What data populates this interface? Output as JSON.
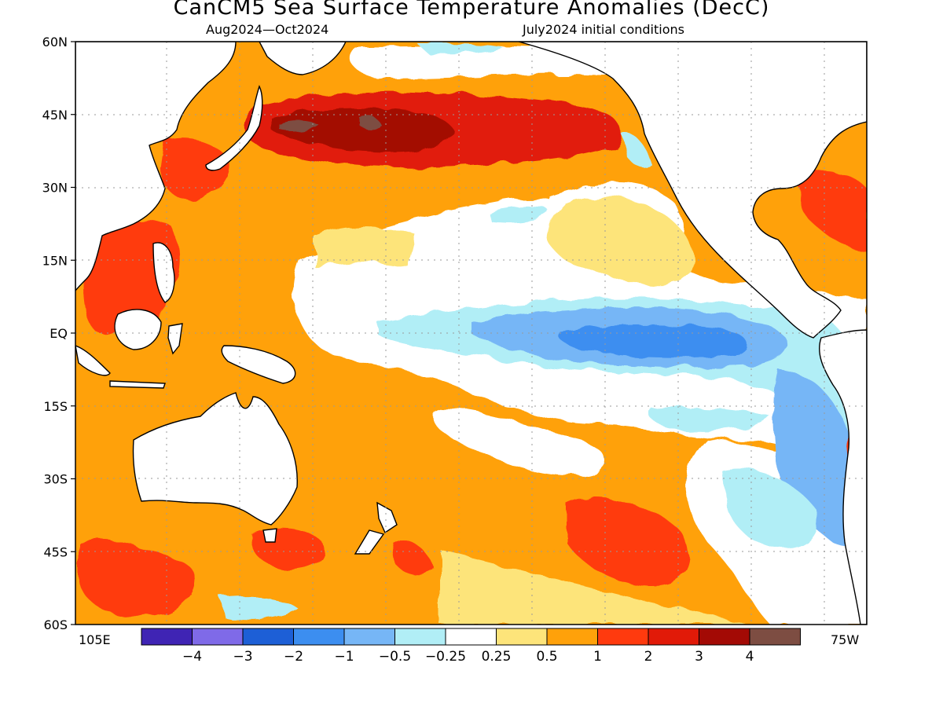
{
  "title": "CanCM5 Sea Surface Temperature Anomalies (DecC)",
  "subtitle_left": "Aug2024—Oct2024",
  "subtitle_right": "July2024 initial conditions",
  "lat_labels": [
    "60N",
    "45N",
    "30N",
    "15N",
    "EQ",
    "15S",
    "30S",
    "45S",
    "60S"
  ],
  "lon_label_left": "105E",
  "lon_label_right": "75W",
  "colorbar": {
    "colors": [
      "#3f24b4",
      "#7f6ae8",
      "#1d5fd6",
      "#3c8ef0",
      "#76b6f6",
      "#b1eef6",
      "#ffffff",
      "#fde47a",
      "#ffa10a",
      "#ff3a0e",
      "#e11a08",
      "#a30a05",
      "#7d4d42"
    ],
    "labels": [
      "-4",
      "-3",
      "-2",
      "-1",
      "-0.5",
      "-0.25",
      "0.25",
      "0.5",
      "1",
      "2",
      "3",
      "4"
    ]
  },
  "palette": {
    "white": "#ffffff",
    "pale_yellow": "#fde47a",
    "orange": "#ffa10a",
    "red_orange": "#ff3a0e",
    "red": "#e11a08",
    "dark_red": "#a30a05",
    "brown": "#7d4d42",
    "light_cyan": "#b1eef6",
    "light_blue": "#76b6f6",
    "blue": "#3c8ef0"
  }
}
